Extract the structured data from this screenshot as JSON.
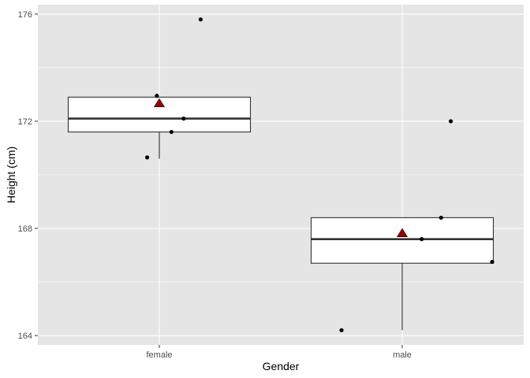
{
  "chart_data": {
    "type": "boxplot",
    "xlabel": "Gender",
    "ylabel": "Height (cm)",
    "categories": [
      "female",
      "male"
    ],
    "ylim": [
      163.65,
      176.35
    ],
    "yticks": [
      164,
      168,
      172,
      176
    ],
    "grid": true,
    "boxes": [
      {
        "category": "female",
        "lower_whisker": 170.6,
        "q1": 171.6,
        "median": 172.1,
        "q3": 172.9,
        "upper_whisker": 172.9,
        "mean": 172.65
      },
      {
        "category": "male",
        "lower_whisker": 164.2,
        "q1": 166.7,
        "median": 167.6,
        "q3": 168.4,
        "upper_whisker": 168.4,
        "mean": 167.8
      }
    ],
    "points": [
      {
        "category": "female",
        "jitter": -0.05,
        "y": 170.65
      },
      {
        "category": "female",
        "jitter": 0.05,
        "y": 171.6
      },
      {
        "category": "female",
        "jitter": 0.1,
        "y": 172.1
      },
      {
        "category": "female",
        "jitter": -0.01,
        "y": 172.95
      },
      {
        "category": "female",
        "jitter": 0.17,
        "y": 175.8
      },
      {
        "category": "male",
        "jitter": -0.25,
        "y": 164.2
      },
      {
        "category": "male",
        "jitter": 0.37,
        "y": 166.75
      },
      {
        "category": "male",
        "jitter": 0.08,
        "y": 167.6
      },
      {
        "category": "male",
        "jitter": 0.16,
        "y": 168.4
      },
      {
        "category": "male",
        "jitter": 0.2,
        "y": 172.0
      }
    ],
    "colors": {
      "panel": "#e5e5e5",
      "grid": "#ffffff",
      "box_fill": "#ffffff",
      "box_line": "#333333",
      "point": "#000000",
      "mean_marker": "#a00000",
      "mean_marker_outline": "#000000"
    },
    "mean_marker": "triangle"
  }
}
